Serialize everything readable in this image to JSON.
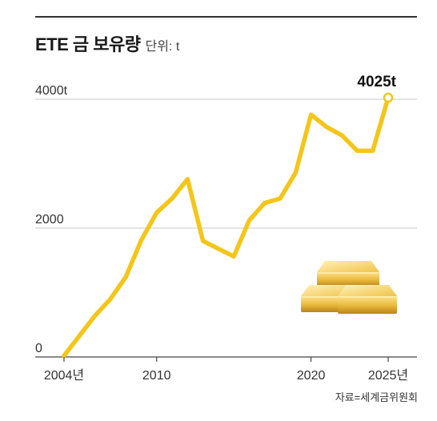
{
  "header": {
    "title": "ETE 금 보유량",
    "unit": "단위: t"
  },
  "source": "자료=세계금위원회",
  "chart_data": {
    "type": "line",
    "title": "ETE 금 보유량",
    "unit_label": "단위: t",
    "x": [
      2004,
      2005,
      2006,
      2007,
      2008,
      2009,
      2010,
      2011,
      2012,
      2013,
      2014,
      2015,
      2016,
      2017,
      2018,
      2019,
      2020,
      2021,
      2022,
      2023,
      2024,
      2025
    ],
    "series": [
      {
        "values": [
          20,
          330,
          640,
          900,
          1240,
          1810,
          2240,
          2460,
          2760,
          1800,
          1680,
          1560,
          2120,
          2390,
          2460,
          2860,
          3760,
          3570,
          3440,
          3200,
          3200,
          4025
        ],
        "color": "#F5C518"
      }
    ],
    "xlim": [
      2004,
      2025
    ],
    "ylim": [
      0,
      4000
    ],
    "y_ticks": [
      {
        "value": 0,
        "label": "0"
      },
      {
        "value": 2000,
        "label": "2000"
      },
      {
        "value": 4000,
        "label": "4000t"
      }
    ],
    "x_ticks": [
      {
        "value": 2004,
        "label": "2004년"
      },
      {
        "value": 2010,
        "label": "2010"
      },
      {
        "value": 2020,
        "label": "2020"
      },
      {
        "value": 2025,
        "label": "2025년"
      }
    ],
    "annotations": [
      {
        "x": 2025,
        "y": 4025,
        "label": "4025t"
      }
    ],
    "grid": true,
    "gold_bar_color": "#E8B83A"
  }
}
